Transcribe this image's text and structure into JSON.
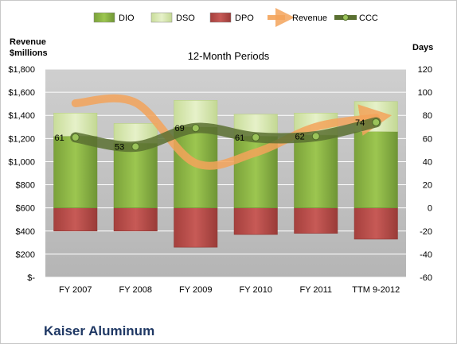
{
  "chart_data": {
    "type": "bar",
    "company": "Kaiser Aluminum",
    "subtitle": "12-Month Periods",
    "y_left_label_lines": [
      "Revenue",
      "$millions"
    ],
    "y_right_label": "Days",
    "categories": [
      "FY 2007",
      "FY 2008",
      "FY 2009",
      "FY 2010",
      "FY 2011",
      "TTM 9-2012"
    ],
    "left_axis": {
      "min": 0,
      "max": 1800,
      "step": 200,
      "tick_labels": [
        "$-",
        "$200",
        "$400",
        "$600",
        "$800",
        "$1,000",
        "$1,200",
        "$1,400",
        "$1,600",
        "$1,800"
      ]
    },
    "right_axis": {
      "min": -60,
      "max": 120,
      "step": 20,
      "tick_labels": [
        "-60",
        "-40",
        "-20",
        "0",
        "20",
        "40",
        "60",
        "80",
        "100",
        "120"
      ]
    },
    "series": [
      {
        "name": "DIO",
        "axis": "right",
        "kind": "bar",
        "values": [
          62,
          56,
          70,
          62,
          63,
          66
        ]
      },
      {
        "name": "DSO",
        "axis": "right",
        "kind": "bar",
        "values": [
          20,
          17,
          23,
          19,
          19,
          26
        ]
      },
      {
        "name": "DPO",
        "axis": "right",
        "kind": "bar",
        "values": [
          -20,
          -20,
          -34,
          -23,
          -22,
          -27
        ]
      },
      {
        "name": "Revenue",
        "axis": "left",
        "kind": "line",
        "values": [
          1505,
          1510,
          987,
          1079,
          1301,
          1380
        ]
      },
      {
        "name": "CCC",
        "axis": "right",
        "kind": "line",
        "values": [
          61,
          53,
          69,
          61,
          62,
          74
        ]
      }
    ],
    "ccc_labels": [
      "61",
      "53",
      "69",
      "61",
      "62",
      "74"
    ],
    "legend": {
      "position": "top",
      "items": [
        "DIO",
        "DSO",
        "DPO",
        "Revenue",
        "CCC"
      ]
    },
    "colors": {
      "DIO": "#8fb843",
      "DSO": "#d7e7b0",
      "DPO": "#c0504d",
      "Revenue": "#f3a35a",
      "CCC": "#5a7031",
      "plot_bg": "#bfbfbf",
      "gridline": "#ffffff"
    },
    "grid": true
  }
}
